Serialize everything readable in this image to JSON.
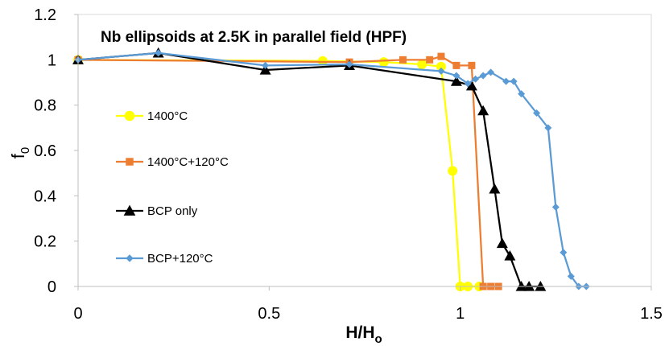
{
  "chart_data": {
    "type": "line",
    "title": "Nb ellipsoids at 2.5K in parallel field (HPF)",
    "xlabel": "H/H",
    "xlabel_sub": "o",
    "ylabel": "f",
    "ylabel_sub": "0",
    "xlim": [
      0,
      1.5
    ],
    "ylim": [
      0,
      1.2
    ],
    "xticks": [
      0,
      0.5,
      1,
      1.5
    ],
    "xtick_labels": [
      "0",
      "0.5",
      "1",
      "1.5"
    ],
    "yticks": [
      0,
      0.2,
      0.4,
      0.6,
      0.8,
      1,
      1.2
    ],
    "ytick_labels": [
      "0",
      "0.2",
      "0.4",
      "0.6",
      "0.8",
      "1",
      "1.2"
    ],
    "grid": false,
    "legend_position": "left-inside",
    "series": [
      {
        "name": "1400°C",
        "color": "#FFFF00",
        "marker": "circle",
        "x": [
          0,
          0.64,
          0.8,
          0.9,
          0.95,
          0.98,
          1.0,
          1.02,
          1.05
        ],
        "y": [
          1.0,
          0.995,
          0.99,
          0.98,
          0.97,
          0.51,
          0.0,
          0.0,
          0.0
        ]
      },
      {
        "name": "1400°C+120°C",
        "color": "#ED7D31",
        "marker": "square",
        "x": [
          0,
          0.71,
          0.85,
          0.92,
          0.95,
          0.99,
          1.03,
          1.06,
          1.08,
          1.1
        ],
        "y": [
          1.0,
          0.99,
          1.0,
          1.0,
          1.015,
          0.975,
          0.975,
          0.0,
          0.0,
          0.0
        ]
      },
      {
        "name": "BCP only",
        "color": "#000000",
        "marker": "triangle",
        "x": [
          0,
          0.21,
          0.49,
          0.71,
          0.99,
          1.03,
          1.06,
          1.09,
          1.11,
          1.13,
          1.16,
          1.18,
          1.21
        ],
        "y": [
          1.0,
          1.03,
          0.955,
          0.975,
          0.905,
          0.885,
          0.775,
          0.43,
          0.19,
          0.135,
          0.0,
          0.0,
          0.0
        ]
      },
      {
        "name": "BCP+120°C",
        "color": "#5B9BD5",
        "marker": "diamond",
        "x": [
          0,
          0.21,
          0.49,
          0.71,
          0.95,
          0.99,
          1.02,
          1.04,
          1.06,
          1.08,
          1.12,
          1.14,
          1.16,
          1.2,
          1.23,
          1.25,
          1.27,
          1.29,
          1.31,
          1.33
        ],
        "y": [
          1.0,
          1.03,
          0.975,
          0.98,
          0.95,
          0.93,
          0.895,
          0.915,
          0.93,
          0.945,
          0.905,
          0.905,
          0.85,
          0.765,
          0.7,
          0.35,
          0.15,
          0.045,
          0.0,
          0.0
        ]
      }
    ]
  }
}
